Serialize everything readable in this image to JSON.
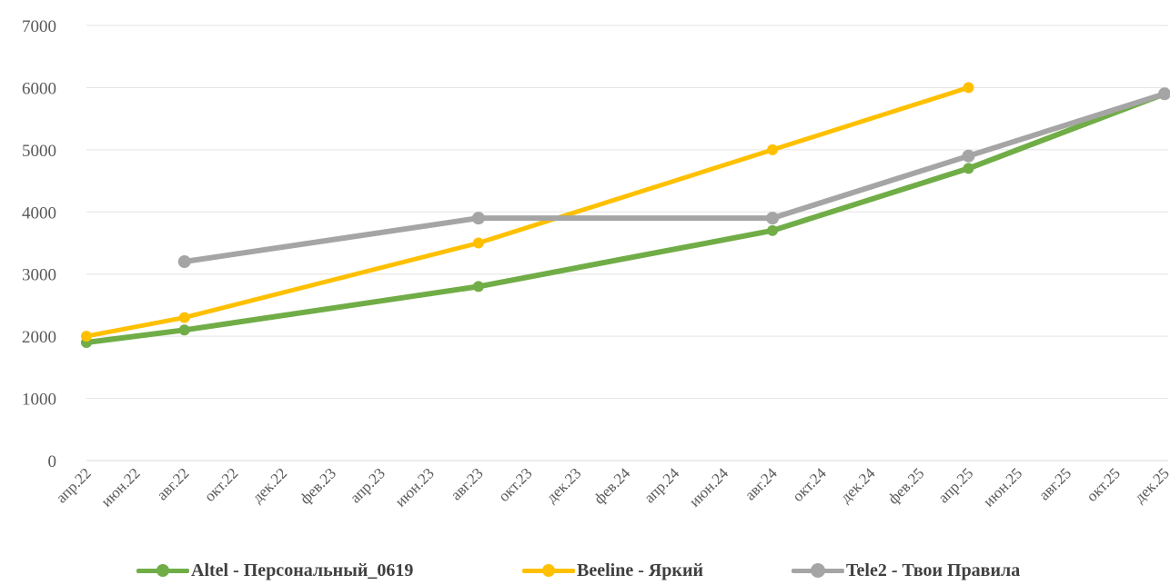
{
  "chart_data": {
    "type": "line",
    "x": [
      "апр.22",
      "июн.22",
      "авг.22",
      "окт.22",
      "дек.22",
      "фев.23",
      "апр.23",
      "июн.23",
      "авг.23",
      "окт.23",
      "дек.23",
      "фев.24",
      "апр.24",
      "июн.24",
      "авг.24",
      "окт.24",
      "дек.24",
      "фев.25",
      "апр.25",
      "июн.25",
      "авг.25",
      "окт.25",
      "дек.25"
    ],
    "ylim": [
      0,
      7000
    ],
    "yticks": [
      "0",
      "1000",
      "2000",
      "3000",
      "4000",
      "5000",
      "6000",
      "7000"
    ],
    "grid": true,
    "legend_position": "bottom",
    "series": [
      {
        "name": "Altel - Персональный_0619",
        "color": "#70AD47",
        "points": [
          [
            0,
            1900
          ],
          [
            2,
            2100
          ],
          [
            8,
            2800
          ],
          [
            14,
            3700
          ],
          [
            18,
            4700
          ],
          [
            22,
            5900
          ]
        ]
      },
      {
        "name": "Beeline - Яркий",
        "color": "#FFC000",
        "points": [
          [
            0,
            2000
          ],
          [
            2,
            2300
          ],
          [
            8,
            3500
          ],
          [
            14,
            5000
          ],
          [
            18,
            6000
          ]
        ]
      },
      {
        "name": "Tele2 - Твои Правила",
        "color": "#A5A5A5",
        "points": [
          [
            2,
            3200
          ],
          [
            8,
            3900
          ],
          [
            14,
            3900
          ],
          [
            18,
            4900
          ],
          [
            22,
            5900
          ]
        ]
      }
    ]
  }
}
